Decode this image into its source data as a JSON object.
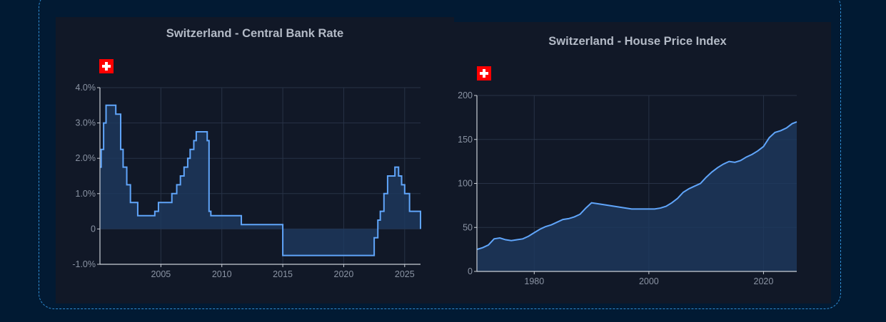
{
  "chart_data": [
    {
      "type": "line",
      "title": "Switzerland - Central Bank Rate",
      "flag_icon": "swiss-flag-icon",
      "xlim": [
        2000,
        2026.3
      ],
      "ylim": [
        -1.0,
        4.0
      ],
      "yticks": [
        -1,
        0,
        1,
        2,
        3,
        4
      ],
      "ytick_labels": [
        "-1.0%",
        "0",
        "1.0%",
        "2.0%",
        "3.0%",
        "4.0%"
      ],
      "xticks": [
        2005,
        2010,
        2015,
        2020,
        2025
      ],
      "xtick_labels": [
        "2005",
        "2010",
        "2015",
        "2020",
        "2025"
      ],
      "grid": true,
      "line_color": "#60a5fa",
      "fill_color": "#1e3a5f",
      "series": [
        {
          "step": true,
          "x": [
            2000.0,
            2000.1,
            2000.3,
            2000.5,
            2001.3,
            2001.7,
            2001.9,
            2002.2,
            2002.5,
            2003.1,
            2004.5,
            2004.8,
            2005.9,
            2006.3,
            2006.6,
            2006.9,
            2007.2,
            2007.4,
            2007.7,
            2007.9,
            2008.8,
            2008.95,
            2009.1,
            2011.6,
            2015.0,
            2022.5,
            2022.8,
            2023.0,
            2023.3,
            2023.6,
            2024.2,
            2024.5,
            2024.75,
            2025.0,
            2025.4,
            2026.3
          ],
          "y": [
            1.75,
            2.25,
            3.0,
            3.5,
            3.25,
            2.25,
            1.75,
            1.25,
            0.75,
            0.375,
            0.5,
            0.75,
            1.0,
            1.25,
            1.5,
            1.75,
            2.0,
            2.25,
            2.5,
            2.75,
            2.5,
            0.5,
            0.375,
            0.125,
            -0.75,
            -0.25,
            0.25,
            0.5,
            1.0,
            1.5,
            1.75,
            1.5,
            1.25,
            1.0,
            0.5,
            0.0
          ]
        }
      ]
    },
    {
      "type": "area",
      "title": "Switzerland - House Price Index",
      "flag_icon": "swiss-flag-icon",
      "xlim": [
        1970,
        2025.8
      ],
      "ylim": [
        0,
        200
      ],
      "yticks": [
        0,
        50,
        100,
        150,
        200
      ],
      "ytick_labels": [
        "0",
        "50",
        "100",
        "150",
        "200"
      ],
      "xticks": [
        1980,
        2000,
        2020
      ],
      "xtick_labels": [
        "1980",
        "2000",
        "2020"
      ],
      "grid": true,
      "line_color": "#60a5fa",
      "fill_color": "#1e3a5f",
      "series": [
        {
          "x": [
            1970,
            1971,
            1972,
            1973,
            1974,
            1975,
            1976,
            1977,
            1978,
            1979,
            1980,
            1981,
            1982,
            1983,
            1984,
            1985,
            1986,
            1987,
            1988,
            1989,
            1990,
            1991,
            1992,
            1993,
            1994,
            1995,
            1996,
            1997,
            1998,
            1999,
            2000,
            2001,
            2002,
            2003,
            2004,
            2005,
            2006,
            2007,
            2008,
            2009,
            2010,
            2011,
            2012,
            2013,
            2014,
            2015,
            2016,
            2017,
            2018,
            2019,
            2020,
            2021,
            2022,
            2023,
            2024,
            2025,
            2025.8
          ],
          "y": [
            25,
            27,
            30,
            37,
            38,
            36,
            35,
            36,
            37,
            40,
            44,
            48,
            51,
            53,
            56,
            59,
            60,
            62,
            65,
            72,
            78,
            77,
            76,
            75,
            74,
            73,
            72,
            71,
            71,
            71,
            71,
            71,
            72,
            74,
            78,
            83,
            90,
            94,
            97,
            100,
            107,
            113,
            118,
            122,
            125,
            124,
            126,
            130,
            133,
            137,
            142,
            152,
            158,
            160,
            163,
            168,
            170
          ]
        }
      ]
    }
  ]
}
